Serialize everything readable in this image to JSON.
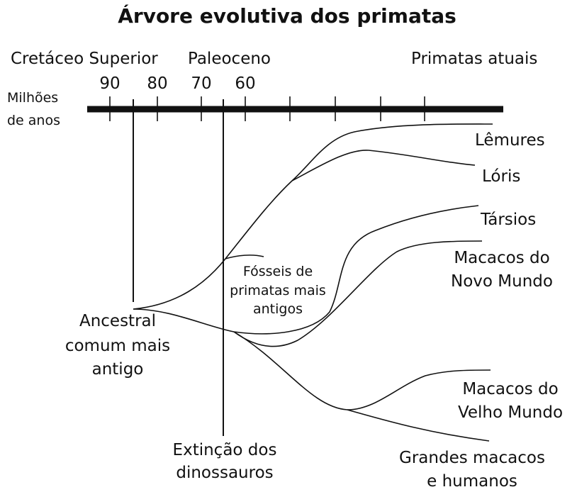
{
  "header": {
    "title": "Árvore evolutiva dos primatas"
  },
  "periods": [
    "Cretáceo Superior",
    "Paleoceno",
    "Primatas atuais"
  ],
  "time_axis": {
    "label": [
      "Milhões",
      "de anos"
    ],
    "ticks": [
      "90",
      "80",
      "70",
      "60"
    ]
  },
  "labels": {
    "lemurs": "Lêmures",
    "loris": "Lóris",
    "tarsiers": "Társios",
    "new_world": [
      "Macacos do",
      "Novo Mundo"
    ],
    "fossils": [
      "Fósseis de",
      "primatas mais",
      "antigos"
    ],
    "ancestor": [
      "Ancestral",
      "comum mais",
      "antigo"
    ],
    "old_world": [
      "Macacos do",
      "Velho Mundo"
    ],
    "extinction": [
      "Extinção dos",
      "dinossauros"
    ],
    "apes": [
      "Grandes macacos",
      "e humanos"
    ]
  }
}
